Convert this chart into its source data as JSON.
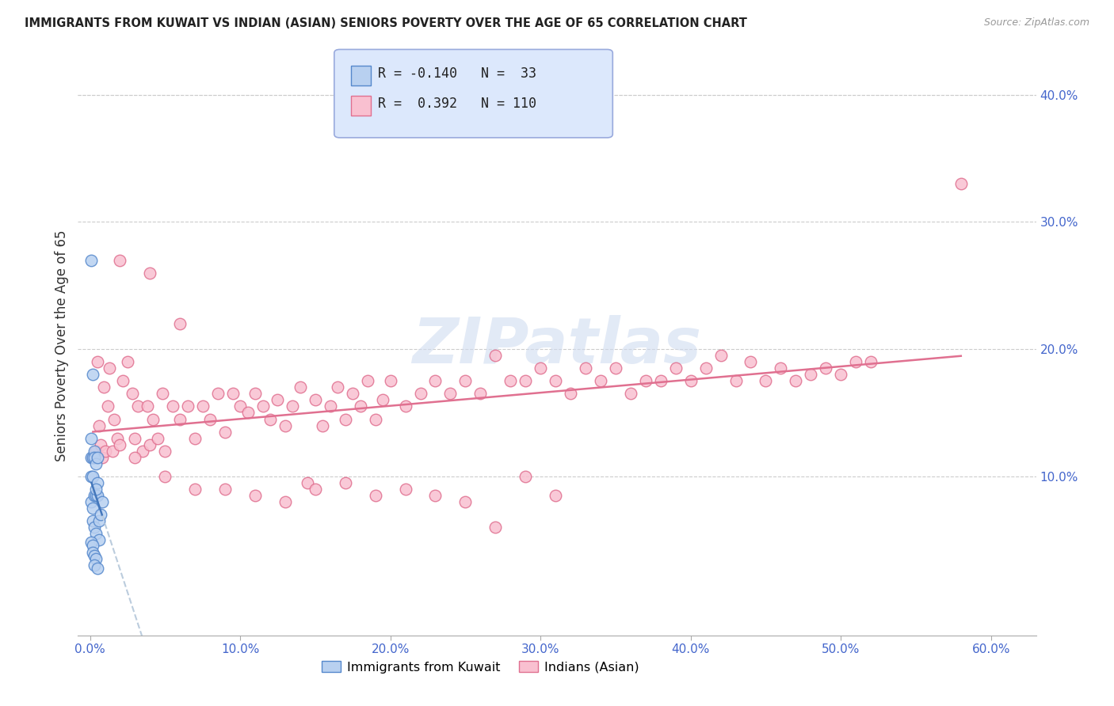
{
  "title": "IMMIGRANTS FROM KUWAIT VS INDIAN (ASIAN) SENIORS POVERTY OVER THE AGE OF 65 CORRELATION CHART",
  "source": "Source: ZipAtlas.com",
  "ylabel": "Seniors Poverty Over the Age of 65",
  "xlabel_vals": [
    0.0,
    0.1,
    0.2,
    0.3,
    0.4,
    0.5,
    0.6
  ],
  "ylabel_vals": [
    0.1,
    0.2,
    0.3,
    0.4
  ],
  "xlim": [
    -0.008,
    0.63
  ],
  "ylim": [
    -0.025,
    0.43
  ],
  "kuwait_color": "#b8d0f0",
  "kuwait_edge": "#5588cc",
  "indian_color": "#f9c0d0",
  "indian_edge": "#e07090",
  "kuwait_R": -0.14,
  "kuwait_N": 33,
  "indian_R": 0.392,
  "indian_N": 110,
  "legend_box_color": "#dce8fc",
  "legend_box_edge": "#99aadd",
  "watermark_color": "#d0dcf0",
  "kuwait_line_color": "#4477bb",
  "indian_line_color": "#e07090",
  "dashed_line_color": "#bbccdd",
  "kuwait_scatter_x": [
    0.001,
    0.001,
    0.001,
    0.001,
    0.001,
    0.002,
    0.002,
    0.002,
    0.002,
    0.002,
    0.003,
    0.003,
    0.003,
    0.003,
    0.004,
    0.004,
    0.004,
    0.005,
    0.005,
    0.006,
    0.006,
    0.007,
    0.008,
    0.001,
    0.002,
    0.002,
    0.003,
    0.004,
    0.003,
    0.005,
    0.005,
    0.004
  ],
  "kuwait_scatter_y": [
    0.27,
    0.13,
    0.115,
    0.1,
    0.08,
    0.18,
    0.115,
    0.1,
    0.075,
    0.065,
    0.12,
    0.115,
    0.085,
    0.06,
    0.11,
    0.085,
    0.055,
    0.115,
    0.085,
    0.065,
    0.05,
    0.07,
    0.08,
    0.048,
    0.046,
    0.04,
    0.038,
    0.035,
    0.03,
    0.028,
    0.095,
    0.09
  ],
  "indian_scatter_x": [
    0.002,
    0.004,
    0.005,
    0.006,
    0.007,
    0.008,
    0.009,
    0.01,
    0.012,
    0.013,
    0.015,
    0.016,
    0.018,
    0.02,
    0.022,
    0.025,
    0.028,
    0.03,
    0.032,
    0.035,
    0.038,
    0.04,
    0.042,
    0.045,
    0.048,
    0.05,
    0.055,
    0.06,
    0.065,
    0.07,
    0.075,
    0.08,
    0.085,
    0.09,
    0.095,
    0.1,
    0.105,
    0.11,
    0.115,
    0.12,
    0.125,
    0.13,
    0.135,
    0.14,
    0.145,
    0.15,
    0.155,
    0.16,
    0.165,
    0.17,
    0.175,
    0.18,
    0.185,
    0.19,
    0.195,
    0.2,
    0.21,
    0.22,
    0.23,
    0.24,
    0.25,
    0.26,
    0.27,
    0.28,
    0.29,
    0.3,
    0.31,
    0.32,
    0.33,
    0.34,
    0.35,
    0.36,
    0.37,
    0.38,
    0.39,
    0.4,
    0.41,
    0.42,
    0.43,
    0.44,
    0.45,
    0.46,
    0.47,
    0.48,
    0.49,
    0.5,
    0.51,
    0.52,
    0.03,
    0.05,
    0.07,
    0.09,
    0.11,
    0.13,
    0.15,
    0.17,
    0.19,
    0.21,
    0.23,
    0.25,
    0.27,
    0.29,
    0.31,
    0.58,
    0.02,
    0.04,
    0.06
  ],
  "indian_scatter_y": [
    0.115,
    0.12,
    0.19,
    0.14,
    0.125,
    0.115,
    0.17,
    0.12,
    0.155,
    0.185,
    0.12,
    0.145,
    0.13,
    0.125,
    0.175,
    0.19,
    0.165,
    0.13,
    0.155,
    0.12,
    0.155,
    0.125,
    0.145,
    0.13,
    0.165,
    0.12,
    0.155,
    0.145,
    0.155,
    0.13,
    0.155,
    0.145,
    0.165,
    0.135,
    0.165,
    0.155,
    0.15,
    0.165,
    0.155,
    0.145,
    0.16,
    0.14,
    0.155,
    0.17,
    0.095,
    0.16,
    0.14,
    0.155,
    0.17,
    0.145,
    0.165,
    0.155,
    0.175,
    0.145,
    0.16,
    0.175,
    0.155,
    0.165,
    0.175,
    0.165,
    0.175,
    0.165,
    0.195,
    0.175,
    0.175,
    0.185,
    0.175,
    0.165,
    0.185,
    0.175,
    0.185,
    0.165,
    0.175,
    0.175,
    0.185,
    0.175,
    0.185,
    0.195,
    0.175,
    0.19,
    0.175,
    0.185,
    0.175,
    0.18,
    0.185,
    0.18,
    0.19,
    0.19,
    0.115,
    0.1,
    0.09,
    0.09,
    0.085,
    0.08,
    0.09,
    0.095,
    0.085,
    0.09,
    0.085,
    0.08,
    0.06,
    0.1,
    0.085,
    0.33,
    0.27,
    0.26,
    0.22
  ]
}
